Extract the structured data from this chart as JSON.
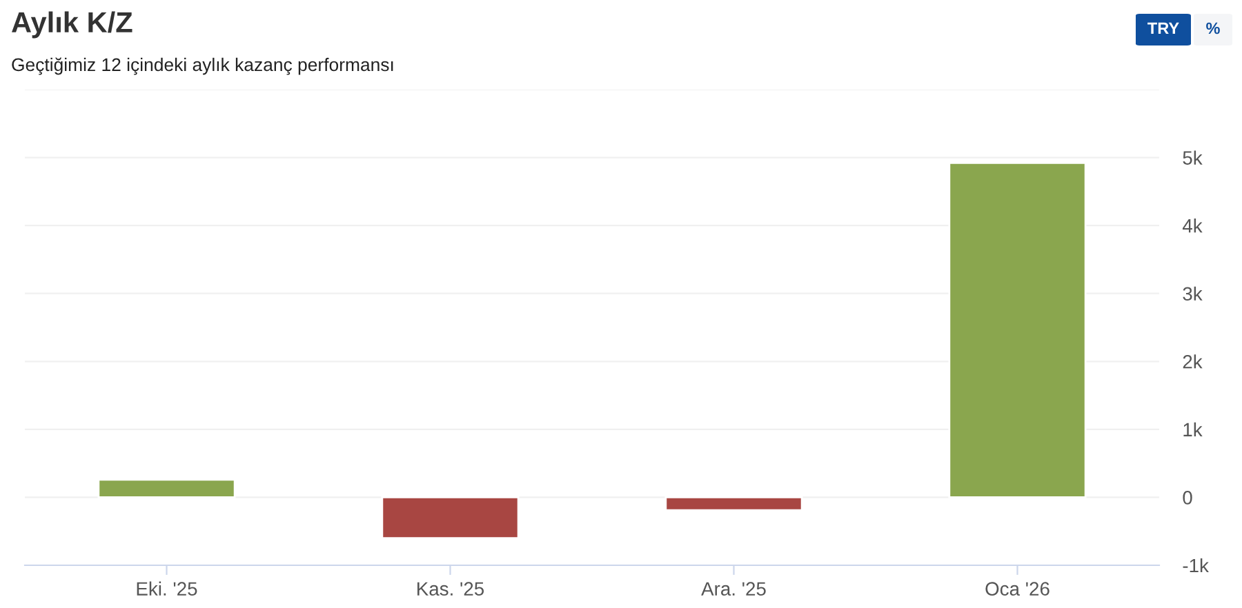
{
  "chart_data": {
    "type": "bar",
    "title": "Aylık K/Z",
    "subtitle": "Geçtiğimiz 12 içindeki aylık kazanç performansı",
    "categories": [
      "Eki. '25",
      "Kas. '25",
      "Ara. '25",
      "Oca '26"
    ],
    "values": [
      260,
      -600,
      -190,
      4920
    ],
    "colors": [
      "#8aa64e",
      "#a84642",
      "#a84642",
      "#8aa64e"
    ],
    "ylim": [
      -1000,
      6000
    ],
    "yticks": [
      {
        "value": -1000,
        "label": "-1k"
      },
      0,
      {
        "value": 1000,
        "label": "1k"
      },
      {
        "value": 2000,
        "label": "2k"
      },
      {
        "value": 3000,
        "label": "3k"
      },
      {
        "value": 4000,
        "label": "4k"
      },
      {
        "value": 5000,
        "label": "5k"
      },
      {
        "value": 6000,
        "label": null
      }
    ],
    "grid": "y",
    "legend": false,
    "annotations": [
      "TRY",
      "%"
    ]
  }
}
